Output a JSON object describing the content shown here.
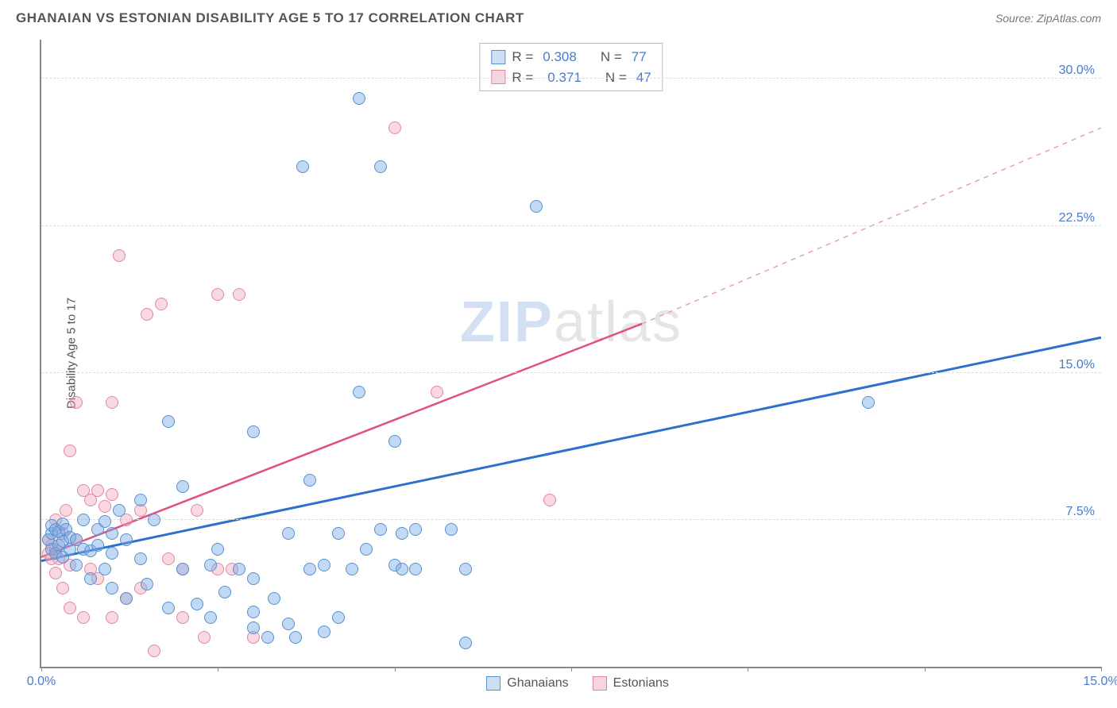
{
  "title": "GHANAIAN VS ESTONIAN DISABILITY AGE 5 TO 17 CORRELATION CHART",
  "source": "Source: ZipAtlas.com",
  "watermark_a": "ZIP",
  "watermark_b": "atlas",
  "chart": {
    "type": "scatter",
    "y_axis_label": "Disability Age 5 to 17",
    "x_range": [
      0,
      15
    ],
    "y_range": [
      0,
      32
    ],
    "x_ticks": [
      0,
      2.5,
      5,
      7.5,
      10,
      12.5,
      15
    ],
    "x_tick_labels": {
      "0": "0.0%",
      "15": "15.0%"
    },
    "y_ticks": [
      7.5,
      15.0,
      22.5,
      30.0
    ],
    "y_tick_labels": [
      "7.5%",
      "15.0%",
      "22.5%",
      "30.0%"
    ],
    "grid_color": "#dddddd",
    "axis_color": "#888888",
    "background_color": "#ffffff",
    "label_fontsize": 15,
    "tick_fontsize": 16,
    "tick_color": "#4a7ac7",
    "marker_size": 16,
    "series": {
      "blue": {
        "legend_name": "Ghanaians",
        "fill": "rgba(120,170,230,0.45)",
        "stroke": "#5a8fd0",
        "trend": {
          "x1": 0,
          "y1": 5.4,
          "x2": 15,
          "y2": 16.8,
          "color": "#2e6fce",
          "width": 3,
          "dash": "none"
        },
        "R_label": "R = ",
        "R": "0.308",
        "N_label": "N = ",
        "N": "77",
        "points": [
          [
            0.1,
            6.5
          ],
          [
            0.15,
            6.0
          ],
          [
            0.15,
            6.8
          ],
          [
            0.15,
            7.2
          ],
          [
            0.2,
            5.8
          ],
          [
            0.2,
            7.0
          ],
          [
            0.25,
            6.2
          ],
          [
            0.25,
            6.9
          ],
          [
            0.3,
            5.6
          ],
          [
            0.3,
            6.4
          ],
          [
            0.3,
            7.3
          ],
          [
            0.35,
            7.0
          ],
          [
            0.4,
            6.0
          ],
          [
            0.4,
            6.6
          ],
          [
            0.5,
            5.2
          ],
          [
            0.5,
            6.5
          ],
          [
            0.6,
            6.0
          ],
          [
            0.6,
            7.5
          ],
          [
            0.7,
            4.5
          ],
          [
            0.7,
            5.9
          ],
          [
            0.8,
            6.2
          ],
          [
            0.8,
            7.0
          ],
          [
            0.9,
            5.0
          ],
          [
            0.9,
            7.4
          ],
          [
            1.0,
            4.0
          ],
          [
            1.0,
            5.8
          ],
          [
            1.0,
            6.8
          ],
          [
            1.1,
            8.0
          ],
          [
            1.2,
            3.5
          ],
          [
            1.2,
            6.5
          ],
          [
            1.4,
            8.5
          ],
          [
            1.4,
            5.5
          ],
          [
            1.5,
            4.2
          ],
          [
            1.6,
            7.5
          ],
          [
            1.8,
            3.0
          ],
          [
            1.8,
            12.5
          ],
          [
            2.0,
            5.0
          ],
          [
            2.0,
            9.2
          ],
          [
            2.2,
            3.2
          ],
          [
            2.4,
            5.2
          ],
          [
            2.4,
            2.5
          ],
          [
            2.5,
            6.0
          ],
          [
            2.6,
            3.8
          ],
          [
            2.8,
            5.0
          ],
          [
            3.0,
            2.0
          ],
          [
            3.0,
            4.5
          ],
          [
            3.0,
            12.0
          ],
          [
            3.2,
            1.5
          ],
          [
            3.3,
            3.5
          ],
          [
            3.5,
            2.2
          ],
          [
            3.5,
            6.8
          ],
          [
            3.6,
            1.5
          ],
          [
            3.7,
            25.5
          ],
          [
            3.8,
            5.0
          ],
          [
            3.8,
            9.5
          ],
          [
            4.0,
            1.8
          ],
          [
            4.0,
            5.2
          ],
          [
            4.2,
            6.8
          ],
          [
            4.2,
            2.5
          ],
          [
            4.4,
            5.0
          ],
          [
            4.5,
            14.0
          ],
          [
            4.5,
            29.0
          ],
          [
            4.6,
            6.0
          ],
          [
            4.8,
            25.5
          ],
          [
            4.8,
            7.0
          ],
          [
            5.0,
            11.5
          ],
          [
            5.0,
            5.2
          ],
          [
            5.1,
            5.0
          ],
          [
            5.1,
            6.8
          ],
          [
            5.3,
            7.0
          ],
          [
            5.3,
            5.0
          ],
          [
            5.8,
            7.0
          ],
          [
            6.0,
            1.2
          ],
          [
            6.0,
            5.0
          ],
          [
            7.0,
            23.5
          ],
          [
            11.7,
            13.5
          ],
          [
            3.0,
            2.8
          ]
        ]
      },
      "pink": {
        "legend_name": "Estonians",
        "fill": "rgba(240,160,180,0.40)",
        "stroke": "#e088a0",
        "trend_solid": {
          "x1": 0,
          "y1": 5.6,
          "x2": 8.5,
          "y2": 17.5,
          "color": "#e05080",
          "width": 2.5
        },
        "trend_dash": {
          "x1": 8.5,
          "y1": 17.5,
          "x2": 15,
          "y2": 27.5,
          "color": "#e8a0b5",
          "width": 1.5,
          "dash": "6,6"
        },
        "R_label": "R = ",
        "R": "0.371",
        "N_label": "N = ",
        "N": "47",
        "points": [
          [
            0.1,
            5.8
          ],
          [
            0.1,
            6.5
          ],
          [
            0.15,
            5.5
          ],
          [
            0.15,
            6.2
          ],
          [
            0.2,
            4.8
          ],
          [
            0.2,
            6.0
          ],
          [
            0.2,
            7.5
          ],
          [
            0.25,
            5.5
          ],
          [
            0.3,
            4.0
          ],
          [
            0.3,
            6.8
          ],
          [
            0.35,
            8.0
          ],
          [
            0.4,
            3.0
          ],
          [
            0.4,
            5.2
          ],
          [
            0.4,
            11.0
          ],
          [
            0.5,
            6.5
          ],
          [
            0.5,
            13.5
          ],
          [
            0.6,
            9.0
          ],
          [
            0.6,
            2.5
          ],
          [
            0.7,
            5.0
          ],
          [
            0.7,
            8.5
          ],
          [
            0.8,
            4.5
          ],
          [
            0.8,
            9.0
          ],
          [
            0.9,
            8.2
          ],
          [
            1.0,
            2.5
          ],
          [
            1.0,
            8.8
          ],
          [
            1.0,
            13.5
          ],
          [
            1.1,
            21.0
          ],
          [
            1.2,
            3.5
          ],
          [
            1.2,
            7.5
          ],
          [
            1.4,
            4.0
          ],
          [
            1.4,
            8.0
          ],
          [
            1.5,
            18.0
          ],
          [
            1.6,
            0.8
          ],
          [
            1.7,
            18.5
          ],
          [
            2.0,
            2.5
          ],
          [
            2.0,
            5.0
          ],
          [
            2.2,
            8.0
          ],
          [
            2.3,
            1.5
          ],
          [
            2.5,
            5.0
          ],
          [
            2.5,
            19.0
          ],
          [
            2.7,
            5.0
          ],
          [
            2.8,
            19.0
          ],
          [
            3.0,
            1.5
          ],
          [
            5.0,
            27.5
          ],
          [
            5.6,
            14.0
          ],
          [
            7.2,
            8.5
          ],
          [
            1.8,
            5.5
          ]
        ]
      }
    }
  }
}
